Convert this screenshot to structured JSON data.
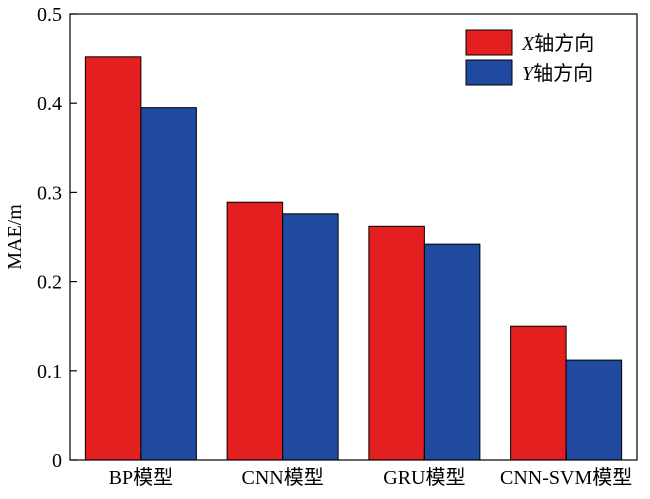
{
  "chart_data": {
    "type": "bar",
    "categories": [
      "BP模型",
      "CNN模型",
      "GRU模型",
      "CNN-SVM模型"
    ],
    "series": [
      {
        "name": "X轴方向",
        "name_italic": "X",
        "name_rest": "轴方向",
        "color": "#e41f1f",
        "values": [
          0.452,
          0.289,
          0.262,
          0.15
        ]
      },
      {
        "name": "Y轴方向",
        "name_italic": "Y",
        "name_rest": "轴方向",
        "color": "#1f4aa0",
        "values": [
          0.395,
          0.276,
          0.242,
          0.112
        ]
      }
    ],
    "title": "",
    "xlabel": "",
    "ylabel": "MAE/m",
    "ylim": [
      0,
      0.5
    ],
    "yticks": [
      "0",
      "0.1",
      "0.2",
      "0.3",
      "0.4",
      "0.5"
    ],
    "ytick_values": [
      0,
      0.1,
      0.2,
      0.3,
      0.4,
      0.5
    ],
    "grid": false,
    "legend_position": "top-right"
  }
}
